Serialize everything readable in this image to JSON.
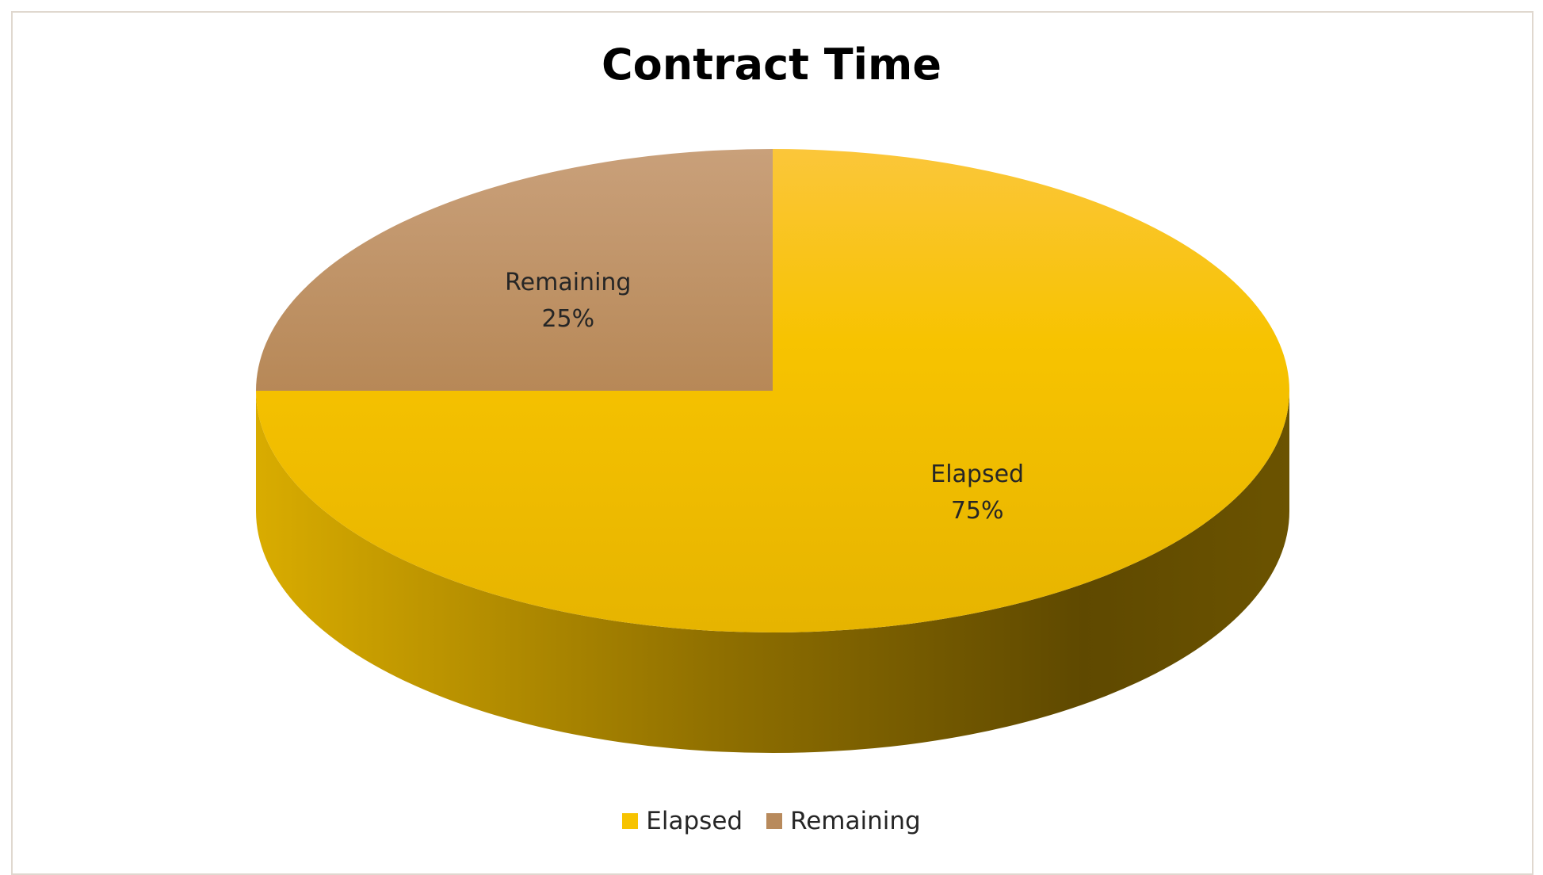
{
  "chart_data": {
    "type": "pie",
    "title": "Contract Time",
    "categories": [
      "Elapsed",
      "Remaining"
    ],
    "values": [
      75,
      25
    ],
    "labels": [
      "75%",
      "25%"
    ],
    "style": "3d",
    "legend_position": "bottom",
    "colors": [
      "#f7c300",
      "#c49a6c"
    ]
  },
  "legend": [
    {
      "label": "Elapsed",
      "color": "#f7c300"
    },
    {
      "label": "Remaining",
      "color": "#b88a5c"
    }
  ]
}
